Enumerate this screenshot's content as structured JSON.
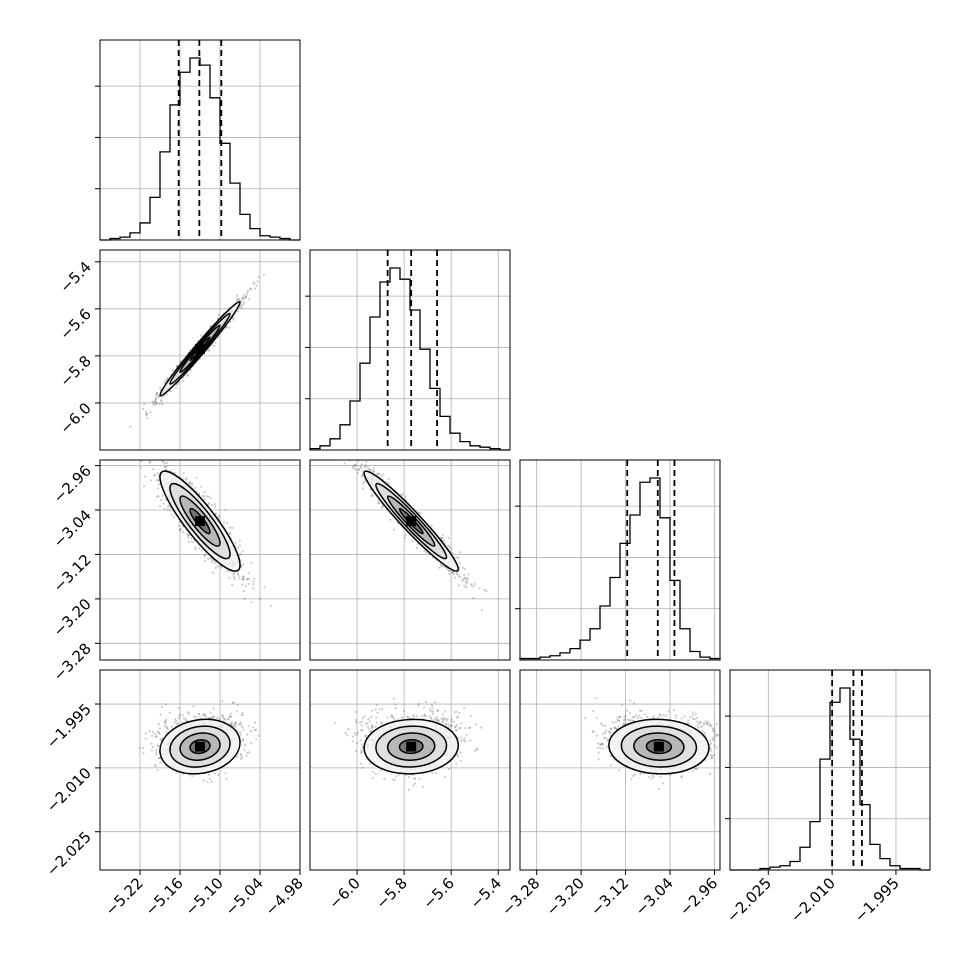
{
  "chart_data": {
    "type": "corner",
    "grid": true,
    "colors": {
      "contour": "#000000",
      "scatter": "#555555",
      "grid": "#b0b0b0"
    },
    "parameters": [
      {
        "index": 0,
        "xlim": [
          -5.28,
          -4.98
        ],
        "ticks": [
          -5.22,
          -5.16,
          -5.1,
          -5.04,
          -4.98
        ],
        "tick_labels": [
          "−5.22",
          "−5.16",
          "−5.10",
          "−5.04",
          "−4.98"
        ],
        "mean": -5.13,
        "sigma": 0.03,
        "quantiles": [
          -5.162,
          -5.131,
          -5.098
        ]
      },
      {
        "index": 1,
        "xlim": [
          -6.2,
          -5.35
        ],
        "ticks": [
          -6.0,
          -5.8,
          -5.6,
          -5.4
        ],
        "tick_labels": [
          "−6.0",
          "−5.8",
          "−5.6",
          "−5.4"
        ],
        "mean": -5.77,
        "sigma": 0.1,
        "quantiles": [
          -5.87,
          -5.77,
          -5.66
        ]
      },
      {
        "index": 2,
        "xlim": [
          -3.31,
          -2.95
        ],
        "ticks": [
          -3.28,
          -3.2,
          -3.12,
          -3.04,
          -2.96
        ],
        "tick_labels": [
          "−3.28",
          "−3.20",
          "−3.12",
          "−3.04",
          "−2.96"
        ],
        "mean": -3.06,
        "sigma": 0.045,
        "quantiles": [
          -3.117,
          -3.062,
          -3.032
        ]
      },
      {
        "index": 3,
        "xlim": [
          -2.034,
          -1.987
        ],
        "ticks": [
          -2.025,
          -2.01,
          -1.995
        ],
        "tick_labels": [
          "−2.025",
          "−2.010",
          "−1.995"
        ],
        "mean": -2.005,
        "sigma": 0.0032,
        "quantiles": [
          -2.01,
          -2.005,
          -2.003
        ]
      }
    ],
    "histograms": [
      {
        "param": 0,
        "bin_edges": [
          -5.28,
          -4.98
        ],
        "counts": [
          0,
          1,
          2,
          5,
          12,
          30,
          62,
          95,
          118,
          128,
          123,
          100,
          68,
          40,
          18,
          8,
          3,
          2,
          1,
          0
        ]
      },
      {
        "param": 1,
        "bin_edges": [
          -6.2,
          -5.35
        ],
        "counts": [
          1,
          3,
          8,
          18,
          35,
          62,
          95,
          120,
          130,
          122,
          100,
          72,
          44,
          24,
          12,
          6,
          3,
          2,
          1,
          0
        ]
      },
      {
        "param": 2,
        "bin_edges": [
          -3.31,
          -2.95
        ],
        "counts": [
          1,
          1,
          2,
          3,
          5,
          8,
          14,
          22,
          38,
          58,
          82,
          102,
          125,
          128,
          100,
          56,
          22,
          6,
          2,
          1
        ]
      },
      {
        "param": 3,
        "bin_edges": [
          -2.034,
          -1.987
        ],
        "counts": [
          0,
          0,
          0,
          1,
          2,
          3,
          6,
          16,
          34,
          78,
          118,
          128,
          92,
          46,
          18,
          8,
          3,
          1,
          1,
          0
        ]
      }
    ],
    "pairs": [
      {
        "x": 0,
        "y": 1,
        "correlation": 0.985
      },
      {
        "x": 0,
        "y": 2,
        "correlation": -0.88
      },
      {
        "x": 1,
        "y": 2,
        "correlation": -0.96
      },
      {
        "x": 0,
        "y": 3,
        "correlation": 0.15
      },
      {
        "x": 1,
        "y": 3,
        "correlation": 0.05
      },
      {
        "x": 2,
        "y": 3,
        "correlation": -0.05
      }
    ],
    "contour_levels_sigma": [
      0.5,
      1.0,
      1.5,
      2.0
    ]
  }
}
